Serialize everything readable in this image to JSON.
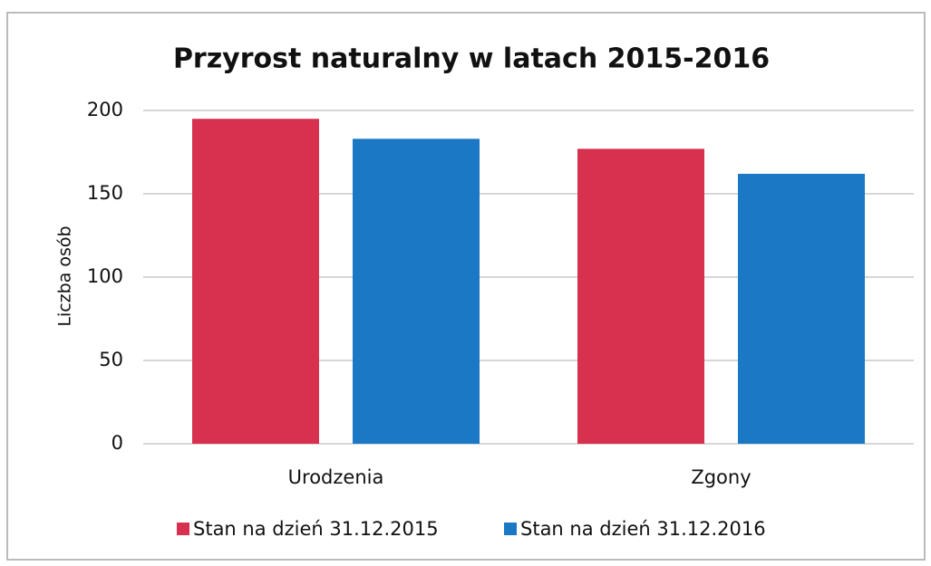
{
  "chart_data": {
    "type": "bar",
    "title": "Przyrost naturalny w latach 2015-2016",
    "y_label": "Liczba osób",
    "categories": [
      "Urodzenia",
      "Zgony"
    ],
    "series": [
      {
        "name": "Stan na dzień 31.12.2015",
        "color": "#d8304f",
        "values": [
          195,
          177
        ]
      },
      {
        "name": "Stan na dzień 31.12.2016",
        "color": "#1b78c4",
        "values": [
          183,
          162
        ]
      }
    ],
    "ylim": [
      0,
      200
    ],
    "yticks": [
      0,
      50,
      100,
      150,
      200
    ],
    "grid": true,
    "legend": "bottom"
  }
}
